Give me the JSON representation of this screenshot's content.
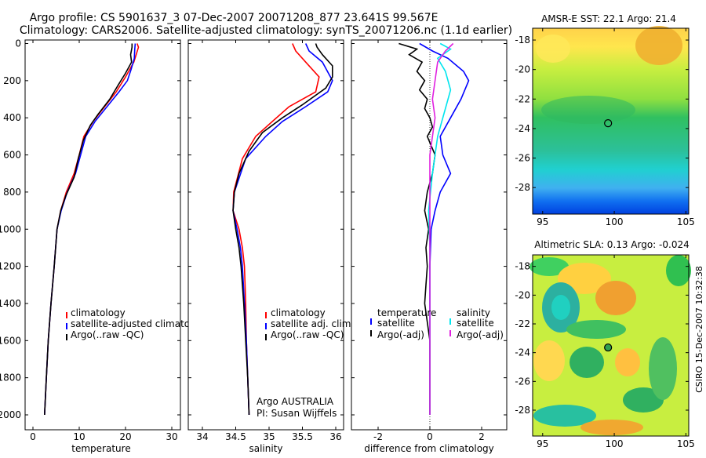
{
  "header": {
    "line1": "Argo profile: CS 5901637_3 07-Dec-2007 20071208_877 23.641S 99.567E",
    "line2": "Climatology: CARS2006. Satellite-adjusted climatology: synTS_20071206.nc (1.1d earlier)"
  },
  "side_label": "CSIRO 15-Dec-2007 10:32:38",
  "colors": {
    "red": "#ff0000",
    "blue": "#0000ff",
    "black": "#000000",
    "cyan": "#00e5ee",
    "magenta": "#e020e0"
  },
  "chart_data": [
    {
      "id": "temperature",
      "type": "line",
      "xlabel": "temperature",
      "xlim": [
        -3,
        32
      ],
      "ylim": [
        2080,
        0
      ],
      "xticks": [
        0,
        10,
        20,
        30
      ],
      "yticks": [
        0,
        200,
        400,
        600,
        800,
        1000,
        1200,
        1400,
        1600,
        1800,
        2000
      ],
      "legend": [
        "climatology",
        "satellite-adjusted climatology",
        "Argo(..raw -QC)"
      ],
      "series": [
        {
          "name": "climatology",
          "color": "red",
          "points": [
            [
              22.5,
              0
            ],
            [
              22.8,
              20
            ],
            [
              22.3,
              60
            ],
            [
              21.8,
              100
            ],
            [
              20,
              180
            ],
            [
              18,
              260
            ],
            [
              15.5,
              340
            ],
            [
              13,
              420
            ],
            [
              11,
              500
            ],
            [
              10,
              600
            ],
            [
              8.9,
              700
            ],
            [
              7.2,
              800
            ],
            [
              6,
              900
            ],
            [
              5.2,
              1000
            ],
            [
              4.6,
              1200
            ],
            [
              3.9,
              1400
            ],
            [
              3.3,
              1600
            ],
            [
              2.9,
              1800
            ],
            [
              2.5,
              2000
            ]
          ]
        },
        {
          "name": "satellite-adjusted climatology",
          "color": "blue",
          "points": [
            [
              22.1,
              0
            ],
            [
              22,
              30
            ],
            [
              21.9,
              80
            ],
            [
              21.2,
              140
            ],
            [
              20.4,
              200
            ],
            [
              18.6,
              260
            ],
            [
              16,
              340
            ],
            [
              13.4,
              420
            ],
            [
              11.4,
              500
            ],
            [
              10.3,
              600
            ],
            [
              9.2,
              700
            ],
            [
              7.4,
              800
            ],
            [
              6.1,
              900
            ],
            [
              5.2,
              1000
            ],
            [
              4.6,
              1200
            ],
            [
              3.9,
              1400
            ],
            [
              3.3,
              1600
            ],
            [
              2.9,
              1800
            ],
            [
              2.5,
              2000
            ]
          ]
        },
        {
          "name": "Argo(..raw -QC)",
          "color": "black",
          "points": [
            [
              21.4,
              0
            ],
            [
              21.4,
              20
            ],
            [
              21.1,
              60
            ],
            [
              21.3,
              100
            ],
            [
              20,
              160
            ],
            [
              18.5,
              220
            ],
            [
              16.6,
              300
            ],
            [
              14.1,
              380
            ],
            [
              12.4,
              440
            ],
            [
              10.9,
              520
            ],
            [
              9.8,
              620
            ],
            [
              8.9,
              720
            ],
            [
              7.1,
              820
            ],
            [
              6,
              900
            ],
            [
              5.2,
              1000
            ],
            [
              4.6,
              1200
            ],
            [
              3.9,
              1400
            ],
            [
              3.3,
              1600
            ],
            [
              2.9,
              1800
            ],
            [
              2.5,
              2000
            ]
          ]
        }
      ]
    },
    {
      "id": "salinity",
      "type": "line",
      "xlabel": "salinity",
      "xlim": [
        33.8,
        36.1
      ],
      "ylim": [
        2080,
        0
      ],
      "xticks": [
        34,
        34.5,
        35,
        35.5,
        36
      ],
      "yticks": [
        0,
        200,
        400,
        600,
        800,
        1000,
        1200,
        1400,
        1600,
        1800,
        2000
      ],
      "legend": [
        "climatology",
        "satellite adj. clim.",
        "Argo(..raw -QC)"
      ],
      "annotation": [
        "Argo AUSTRALIA",
        "PI: Susan Wijffels"
      ],
      "series": [
        {
          "name": "climatology",
          "color": "red",
          "points": [
            [
              35.35,
              0
            ],
            [
              35.4,
              40
            ],
            [
              35.55,
              100
            ],
            [
              35.75,
              180
            ],
            [
              35.7,
              260
            ],
            [
              35.3,
              340
            ],
            [
              35.05,
              420
            ],
            [
              34.8,
              500
            ],
            [
              34.6,
              620
            ],
            [
              34.47,
              800
            ],
            [
              34.46,
              900
            ],
            [
              34.55,
              1000
            ],
            [
              34.6,
              1100
            ],
            [
              34.63,
              1200
            ],
            [
              34.65,
              1400
            ],
            [
              34.66,
              1600
            ],
            [
              34.68,
              1800
            ],
            [
              34.7,
              2000
            ]
          ]
        },
        {
          "name": "satellite adj. clim.",
          "color": "blue",
          "points": [
            [
              35.55,
              0
            ],
            [
              35.6,
              40
            ],
            [
              35.8,
              100
            ],
            [
              35.95,
              200
            ],
            [
              35.88,
              260
            ],
            [
              35.55,
              340
            ],
            [
              35.2,
              420
            ],
            [
              34.95,
              500
            ],
            [
              34.65,
              620
            ],
            [
              34.48,
              800
            ],
            [
              34.46,
              900
            ],
            [
              34.52,
              1000
            ],
            [
              34.57,
              1100
            ],
            [
              34.6,
              1200
            ],
            [
              34.63,
              1400
            ],
            [
              34.66,
              1600
            ],
            [
              34.68,
              1800
            ],
            [
              34.7,
              2000
            ]
          ]
        },
        {
          "name": "Argo(..raw -QC)",
          "color": "black",
          "points": [
            [
              35.7,
              0
            ],
            [
              35.72,
              20
            ],
            [
              35.8,
              60
            ],
            [
              35.95,
              120
            ],
            [
              35.95,
              180
            ],
            [
              35.85,
              240
            ],
            [
              35.5,
              330
            ],
            [
              35.2,
              400
            ],
            [
              34.9,
              480
            ],
            [
              34.7,
              580
            ],
            [
              34.55,
              700
            ],
            [
              34.48,
              800
            ],
            [
              34.46,
              900
            ],
            [
              34.5,
              1000
            ],
            [
              34.55,
              1100
            ],
            [
              34.58,
              1200
            ],
            [
              34.62,
              1400
            ],
            [
              34.65,
              1600
            ],
            [
              34.68,
              1800
            ],
            [
              34.7,
              2000
            ]
          ]
        }
      ]
    },
    {
      "id": "difference",
      "type": "line",
      "xlabel": "difference from climatology",
      "xlim": [
        -3,
        3.1
      ],
      "ylim": [
        2080,
        0
      ],
      "xticks": [
        -2,
        0,
        2
      ],
      "yticks": [
        0,
        200,
        400,
        600,
        800,
        1000,
        1200,
        1400,
        1600,
        1800,
        2000
      ],
      "legend_left_title": "temperature",
      "legend_left": [
        "satellite",
        "Argo(-adj)"
      ],
      "legend_right_title": "salinity",
      "legend_right": [
        "satellite",
        "Argo(-adj)"
      ],
      "series": [
        {
          "name": "temperature satellite",
          "color": "blue",
          "points": [
            [
              -0.4,
              0
            ],
            [
              0.1,
              40
            ],
            [
              0.7,
              80
            ],
            [
              1.3,
              150
            ],
            [
              1.5,
              200
            ],
            [
              1.2,
              300
            ],
            [
              0.8,
              400
            ],
            [
              0.4,
              500
            ],
            [
              0.5,
              600
            ],
            [
              0.8,
              700
            ],
            [
              0.4,
              800
            ],
            [
              0.2,
              900
            ],
            [
              0.05,
              1000
            ],
            [
              0,
              1200
            ],
            [
              0,
              1400
            ],
            [
              0,
              1600
            ],
            [
              0,
              1800
            ],
            [
              0,
              2000
            ]
          ]
        },
        {
          "name": "temperature Argo(-adj)",
          "color": "black",
          "points": [
            [
              -1.2,
              0
            ],
            [
              -0.5,
              30
            ],
            [
              -0.8,
              60
            ],
            [
              -0.3,
              100
            ],
            [
              -0.5,
              150
            ],
            [
              -0.2,
              200
            ],
            [
              -0.4,
              250
            ],
            [
              -0.1,
              300
            ],
            [
              -0.2,
              350
            ],
            [
              0,
              400
            ],
            [
              0.1,
              450
            ],
            [
              -0.1,
              500
            ],
            [
              0.2,
              600
            ],
            [
              0.1,
              700
            ],
            [
              -0.1,
              800
            ],
            [
              -0.2,
              900
            ],
            [
              -0.05,
              1000
            ],
            [
              -0.15,
              1100
            ],
            [
              -0.1,
              1200
            ],
            [
              -0.15,
              1300
            ],
            [
              -0.2,
              1400
            ],
            [
              -0.1,
              1500
            ],
            [
              0,
              1600
            ],
            [
              0,
              1800
            ],
            [
              0,
              2000
            ]
          ]
        },
        {
          "name": "salinity satellite",
          "color": "cyan",
          "points": [
            [
              0.4,
              0
            ],
            [
              0.8,
              30
            ],
            [
              0.3,
              80
            ],
            [
              0.6,
              150
            ],
            [
              0.8,
              250
            ],
            [
              0.6,
              350
            ],
            [
              0.3,
              500
            ],
            [
              0.1,
              700
            ],
            [
              -0.05,
              900
            ],
            [
              0,
              1100
            ],
            [
              0,
              1300
            ],
            [
              0,
              1600
            ],
            [
              0,
              2000
            ]
          ]
        },
        {
          "name": "salinity Argo(-adj)",
          "color": "magenta",
          "points": [
            [
              0.9,
              0
            ],
            [
              0.6,
              40
            ],
            [
              0.3,
              100
            ],
            [
              0.2,
              200
            ],
            [
              0.1,
              300
            ],
            [
              0.2,
              400
            ],
            [
              0.1,
              500
            ],
            [
              0,
              600
            ],
            [
              0,
              800
            ],
            [
              0,
              1000
            ],
            [
              0,
              2000
            ]
          ]
        }
      ]
    },
    {
      "id": "sst_map",
      "type": "heatmap",
      "title": "AMSR-E SST: 22.1 Argo: 21.4",
      "xlim": [
        94.3,
        105.2
      ],
      "ylim": [
        -29.8,
        -17.2
      ],
      "xticks": [
        95,
        100,
        105
      ],
      "yticks": [
        -18,
        -20,
        -22,
        -24,
        -26,
        -28
      ],
      "marker": {
        "lon": 99.567,
        "lat": -23.641
      }
    },
    {
      "id": "sla_map",
      "type": "heatmap",
      "title": "Altimetric SLA: 0.13 Argo: -0.024",
      "xlim": [
        94.3,
        105.2
      ],
      "ylim": [
        -29.8,
        -17.2
      ],
      "xticks": [
        95,
        100,
        105
      ],
      "yticks": [
        -18,
        -20,
        -22,
        -24,
        -26,
        -28
      ],
      "marker": {
        "lon": 99.567,
        "lat": -23.641
      }
    }
  ]
}
